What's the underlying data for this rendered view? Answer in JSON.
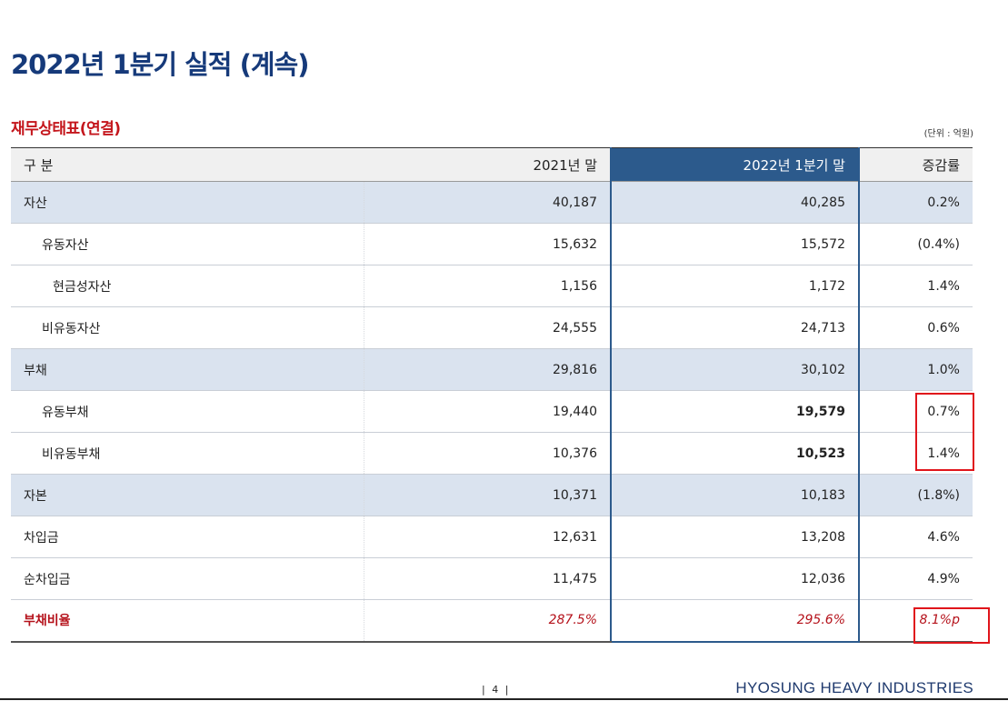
{
  "page": {
    "title": "2022년 1분기 실적 (계속)",
    "subtitle": "재무상태표(연결)",
    "unit": "(단위 : 억원)",
    "page_number": "| 4 |",
    "company": "HYOSUNG HEAVY INDUSTRIES"
  },
  "table": {
    "headers": [
      "구 분",
      "2021년 말",
      "2022년 1분기 말",
      "증감률"
    ],
    "rows": [
      {
        "label": "자산",
        "prev": "40,187",
        "curr": "40,285",
        "change": "0.2%"
      },
      {
        "label": "유동자산",
        "prev": "15,632",
        "curr": "15,572",
        "change": "(0.4%)"
      },
      {
        "label": "현금성자산",
        "prev": "1,156",
        "curr": "1,172",
        "change": "1.4%"
      },
      {
        "label": "비유동자산",
        "prev": "24,555",
        "curr": "24,713",
        "change": "0.6%"
      },
      {
        "label": "부채",
        "prev": "29,816",
        "curr": "30,102",
        "change": "1.0%"
      },
      {
        "label": "유동부채",
        "prev": "19,440",
        "curr": "19,579",
        "change": "0.7%"
      },
      {
        "label": "비유동부채",
        "prev": "10,376",
        "curr": "10,523",
        "change": "1.4%"
      },
      {
        "label": "자본",
        "prev": "10,371",
        "curr": "10,183",
        "change": "(1.8%)"
      },
      {
        "label": "차입금",
        "prev": "12,631",
        "curr": "13,208",
        "change": "4.6%"
      },
      {
        "label": "순차입금",
        "prev": "11,475",
        "curr": "12,036",
        "change": "4.9%"
      },
      {
        "label": "부채비율",
        "prev": "287.5%",
        "curr": "295.6%",
        "change": "8.1%p"
      }
    ]
  },
  "colors": {
    "title": "#163a7a",
    "subtitle": "#c4161c",
    "highlight_column": "#2c5a8c",
    "group_row": "#dae3ef",
    "annotation_box": "#e0151b"
  }
}
